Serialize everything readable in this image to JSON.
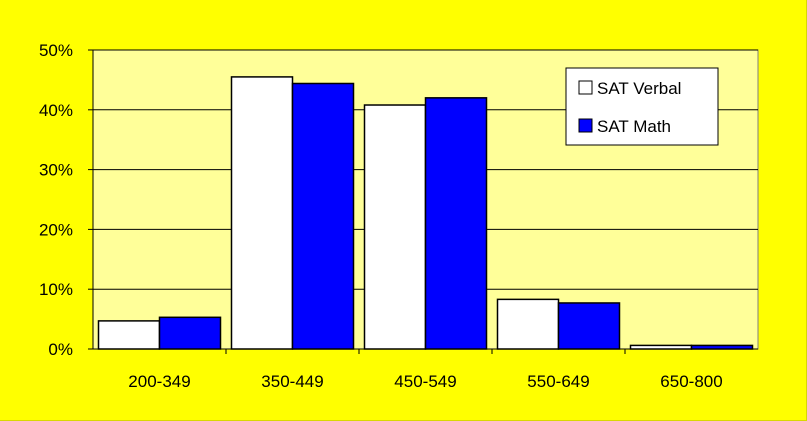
{
  "chart_data": {
    "type": "bar",
    "categories": [
      "200-349",
      "350-449",
      "450-549",
      "550-649",
      "650-800"
    ],
    "series": [
      {
        "name": "SAT Verbal",
        "values": [
          4.7,
          45.5,
          40.8,
          8.3,
          0.6
        ],
        "color": "#ffffff"
      },
      {
        "name": "SAT Math",
        "values": [
          5.3,
          44.4,
          42.0,
          7.7,
          0.6
        ],
        "color": "#0000ff"
      }
    ],
    "ylim": [
      0,
      50
    ],
    "yticks": [
      0,
      10,
      20,
      30,
      40,
      50
    ],
    "ytick_labels": [
      "0%",
      "10%",
      "20%",
      "30%",
      "40%",
      "50%"
    ],
    "grid": "horizontal",
    "legend_position": "top-right",
    "background_color": "#ffff00",
    "plot_background_color": "#ffff99"
  }
}
